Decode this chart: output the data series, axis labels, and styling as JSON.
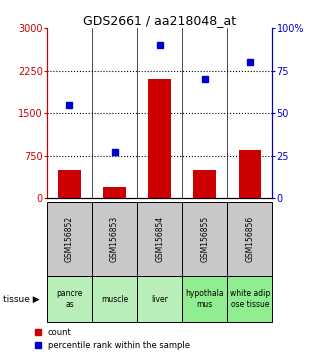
{
  "title": "GDS2661 / aa218048_at",
  "samples": [
    "GSM156852",
    "GSM156853",
    "GSM156854",
    "GSM156855",
    "GSM156856"
  ],
  "tissues": [
    "pancre\nas",
    "muscle",
    "liver",
    "hypothala\nmus",
    "white adip\nose tissue"
  ],
  "tissue_colors": [
    "#b8eeb8",
    "#b8eeb8",
    "#b8eeb8",
    "#90ee90",
    "#90ee90"
  ],
  "sample_box_color": "#c8c8c8",
  "counts": [
    500,
    200,
    2100,
    500,
    850
  ],
  "percentiles": [
    55,
    27,
    90,
    70,
    80
  ],
  "bar_color": "#cc0000",
  "dot_color": "#0000cc",
  "left_ylim": [
    0,
    3000
  ],
  "right_ylim": [
    0,
    100
  ],
  "left_yticks": [
    0,
    750,
    1500,
    2250,
    3000
  ],
  "right_yticks": [
    0,
    25,
    50,
    75,
    100
  ],
  "left_ytick_color": "#cc0000",
  "right_ytick_color": "#0000cc",
  "title_fontsize": 9,
  "bar_width": 0.5
}
